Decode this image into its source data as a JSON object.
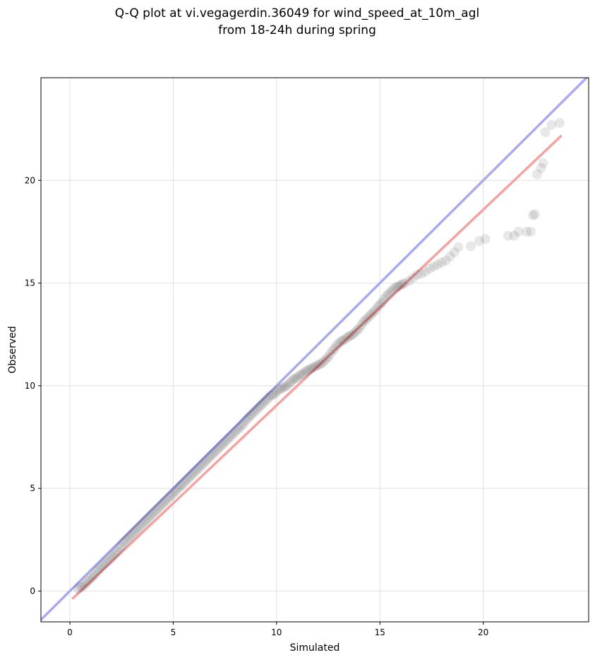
{
  "chart_data": {
    "type": "scatter",
    "title_line1": "Q-Q plot at vi.vegagerdin.36049 for wind_speed_at_10m_agl",
    "title_line2": "from 18-24h during spring",
    "xlabel": "Simulated",
    "ylabel": "Observed",
    "xlim": [
      -1.4,
      25.1
    ],
    "ylim": [
      -1.5,
      25.0
    ],
    "xticks": [
      0,
      5,
      10,
      15,
      20
    ],
    "yticks": [
      0,
      5,
      10,
      15,
      20
    ],
    "grid": true,
    "identity_line": {
      "color": "#aaaaee"
    },
    "fit_line": {
      "color": "#f4a3a3",
      "points": [
        [
          0.15,
          -0.35
        ],
        [
          23.75,
          22.15
        ]
      ]
    },
    "point_color": "#000000",
    "points": [
      [
        0.4,
        0.1
      ],
      [
        0.5,
        0.2
      ],
      [
        0.6,
        0.2
      ],
      [
        0.7,
        0.3
      ],
      [
        0.8,
        0.4
      ],
      [
        0.9,
        0.5
      ],
      [
        1.0,
        0.6
      ],
      [
        1.1,
        0.7
      ],
      [
        1.2,
        0.8
      ],
      [
        1.3,
        0.95
      ],
      [
        1.4,
        1.05
      ],
      [
        1.5,
        1.15
      ],
      [
        1.6,
        1.25
      ],
      [
        1.7,
        1.35
      ],
      [
        1.8,
        1.45
      ],
      [
        1.9,
        1.55
      ],
      [
        2.0,
        1.65
      ],
      [
        2.1,
        1.75
      ],
      [
        2.2,
        1.85
      ],
      [
        2.3,
        1.95
      ],
      [
        2.4,
        2.1
      ],
      [
        2.5,
        2.2
      ],
      [
        2.6,
        2.35
      ],
      [
        2.7,
        2.45
      ],
      [
        2.8,
        2.55
      ],
      [
        2.9,
        2.65
      ],
      [
        3.0,
        2.75
      ],
      [
        3.1,
        2.85
      ],
      [
        3.2,
        2.95
      ],
      [
        3.3,
        3.05
      ],
      [
        3.4,
        3.15
      ],
      [
        3.5,
        3.25
      ],
      [
        3.6,
        3.35
      ],
      [
        3.7,
        3.45
      ],
      [
        3.8,
        3.55
      ],
      [
        3.9,
        3.65
      ],
      [
        4.0,
        3.75
      ],
      [
        4.1,
        3.85
      ],
      [
        4.2,
        3.95
      ],
      [
        4.3,
        4.05
      ],
      [
        4.4,
        4.15
      ],
      [
        4.5,
        4.25
      ],
      [
        4.6,
        4.35
      ],
      [
        4.7,
        4.45
      ],
      [
        4.8,
        4.55
      ],
      [
        4.9,
        4.65
      ],
      [
        5.0,
        4.75
      ],
      [
        5.1,
        4.85
      ],
      [
        5.2,
        4.95
      ],
      [
        5.3,
        5.05
      ],
      [
        5.4,
        5.15
      ],
      [
        5.5,
        5.25
      ],
      [
        5.6,
        5.35
      ],
      [
        5.7,
        5.45
      ],
      [
        5.8,
        5.55
      ],
      [
        5.9,
        5.65
      ],
      [
        6.0,
        5.75
      ],
      [
        6.1,
        5.85
      ],
      [
        6.2,
        5.95
      ],
      [
        6.3,
        6.05
      ],
      [
        6.4,
        6.15
      ],
      [
        6.5,
        6.25
      ],
      [
        6.6,
        6.35
      ],
      [
        6.7,
        6.45
      ],
      [
        6.8,
        6.55
      ],
      [
        6.9,
        6.65
      ],
      [
        7.0,
        6.75
      ],
      [
        7.1,
        6.85
      ],
      [
        7.2,
        6.95
      ],
      [
        7.3,
        7.05
      ],
      [
        7.4,
        7.15
      ],
      [
        7.5,
        7.25
      ],
      [
        7.6,
        7.35
      ],
      [
        7.7,
        7.45
      ],
      [
        7.8,
        7.55
      ],
      [
        7.9,
        7.65
      ],
      [
        8.0,
        7.75
      ],
      [
        8.1,
        7.85
      ],
      [
        8.2,
        7.95
      ],
      [
        8.3,
        8.05
      ],
      [
        8.4,
        8.15
      ],
      [
        8.5,
        8.3
      ],
      [
        8.6,
        8.4
      ],
      [
        8.7,
        8.5
      ],
      [
        8.8,
        8.6
      ],
      [
        8.9,
        8.7
      ],
      [
        9.0,
        8.8
      ],
      [
        9.1,
        8.9
      ],
      [
        9.2,
        9.0
      ],
      [
        9.3,
        9.1
      ],
      [
        9.4,
        9.2
      ],
      [
        9.5,
        9.3
      ],
      [
        9.6,
        9.4
      ],
      [
        9.7,
        9.5
      ],
      [
        9.8,
        9.55
      ],
      [
        9.9,
        9.6
      ],
      [
        10.0,
        9.7
      ],
      [
        10.1,
        9.8
      ],
      [
        10.2,
        9.85
      ],
      [
        10.3,
        9.9
      ],
      [
        10.4,
        9.95
      ],
      [
        10.5,
        10.0
      ],
      [
        10.6,
        10.1
      ],
      [
        10.7,
        10.2
      ],
      [
        10.8,
        10.3
      ],
      [
        10.9,
        10.35
      ],
      [
        11.0,
        10.4
      ],
      [
        11.1,
        10.5
      ],
      [
        11.2,
        10.55
      ],
      [
        11.3,
        10.6
      ],
      [
        11.4,
        10.7
      ],
      [
        11.5,
        10.75
      ],
      [
        11.6,
        10.8
      ],
      [
        11.7,
        10.85
      ],
      [
        11.8,
        10.9
      ],
      [
        11.9,
        10.95
      ],
      [
        12.0,
        11.0
      ],
      [
        12.1,
        11.05
      ],
      [
        12.2,
        11.1
      ],
      [
        12.3,
        11.2
      ],
      [
        12.4,
        11.3
      ],
      [
        12.5,
        11.4
      ],
      [
        12.6,
        11.55
      ],
      [
        12.7,
        11.7
      ],
      [
        12.8,
        11.8
      ],
      [
        12.9,
        11.95
      ],
      [
        13.0,
        12.05
      ],
      [
        13.1,
        12.15
      ],
      [
        13.2,
        12.2
      ],
      [
        13.3,
        12.25
      ],
      [
        13.4,
        12.35
      ],
      [
        13.5,
        12.4
      ],
      [
        13.6,
        12.45
      ],
      [
        13.7,
        12.5
      ],
      [
        13.8,
        12.6
      ],
      [
        13.9,
        12.7
      ],
      [
        14.0,
        12.8
      ],
      [
        14.1,
        12.95
      ],
      [
        14.2,
        13.1
      ],
      [
        14.3,
        13.2
      ],
      [
        14.4,
        13.3
      ],
      [
        14.5,
        13.4
      ],
      [
        14.6,
        13.5
      ],
      [
        14.7,
        13.6
      ],
      [
        14.8,
        13.7
      ],
      [
        14.9,
        13.85
      ],
      [
        15.0,
        13.95
      ],
      [
        15.1,
        14.05
      ],
      [
        15.2,
        14.2
      ],
      [
        15.3,
        14.35
      ],
      [
        15.4,
        14.45
      ],
      [
        15.5,
        14.55
      ],
      [
        15.6,
        14.65
      ],
      [
        15.7,
        14.75
      ],
      [
        15.8,
        14.8
      ],
      [
        15.9,
        14.85
      ],
      [
        16.0,
        14.9
      ],
      [
        16.1,
        14.95
      ],
      [
        16.2,
        15.0
      ],
      [
        16.4,
        15.1
      ],
      [
        16.6,
        15.25
      ],
      [
        16.8,
        15.4
      ],
      [
        17.0,
        15.45
      ],
      [
        17.2,
        15.55
      ],
      [
        17.4,
        15.7
      ],
      [
        17.6,
        15.8
      ],
      [
        17.8,
        15.9
      ],
      [
        18.0,
        16.0
      ],
      [
        18.2,
        16.1
      ],
      [
        18.4,
        16.3
      ],
      [
        18.6,
        16.5
      ],
      [
        18.8,
        16.75
      ],
      [
        19.4,
        16.8
      ],
      [
        19.8,
        17.05
      ],
      [
        20.1,
        17.15
      ],
      [
        21.2,
        17.3
      ],
      [
        21.5,
        17.3
      ],
      [
        21.7,
        17.5
      ],
      [
        22.1,
        17.5
      ],
      [
        22.3,
        17.5
      ],
      [
        22.4,
        18.3
      ],
      [
        22.5,
        18.35
      ],
      [
        22.6,
        20.3
      ],
      [
        22.8,
        20.6
      ],
      [
        22.9,
        20.85
      ],
      [
        23.0,
        22.35
      ],
      [
        23.3,
        22.7
      ],
      [
        23.7,
        22.8
      ]
    ]
  }
}
